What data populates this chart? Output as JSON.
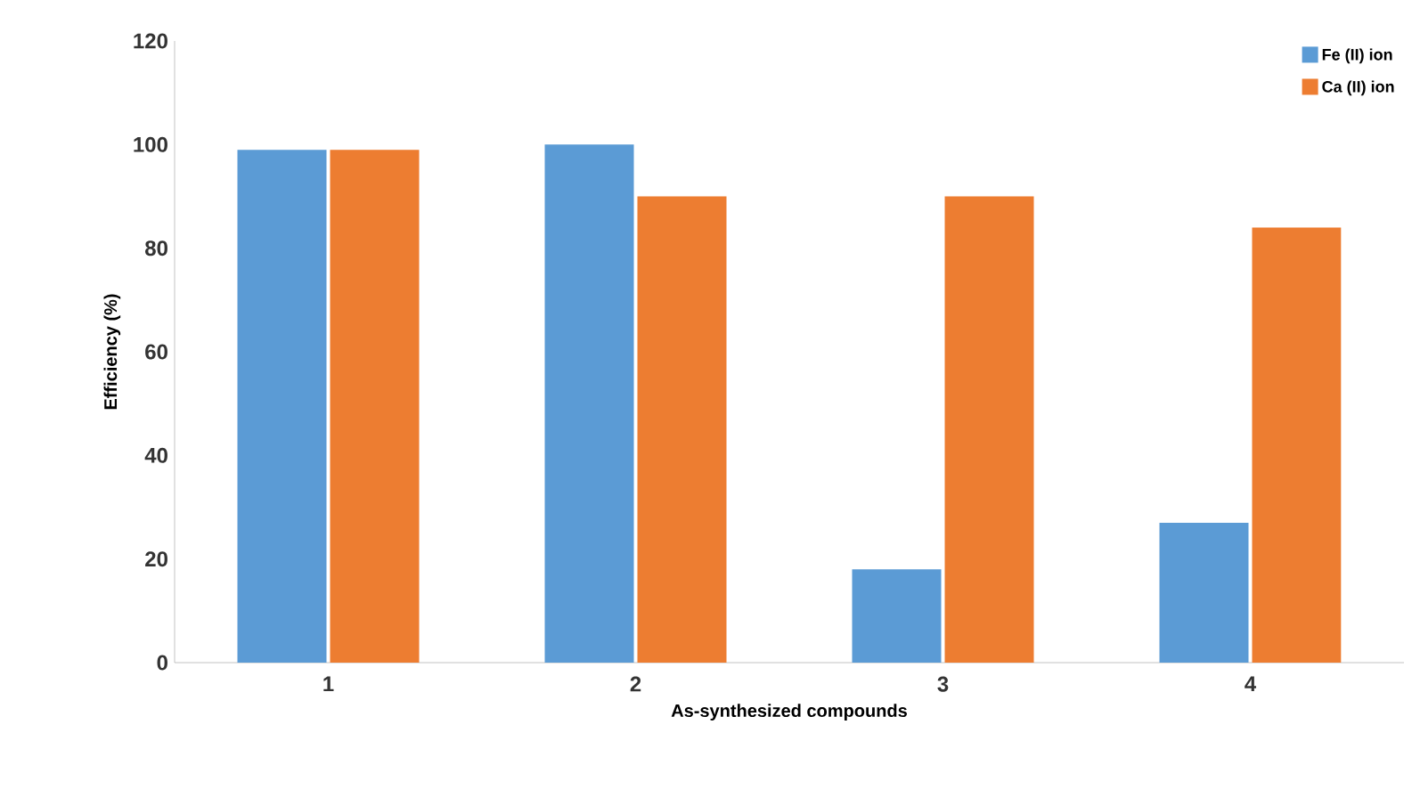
{
  "chart_data": {
    "type": "bar",
    "xlabel": "As-synthesized compounds",
    "ylabel": "Efficiency (%)",
    "categories": [
      "1",
      "2",
      "3",
      "4"
    ],
    "series": [
      {
        "name": "Fe (II) ion",
        "color": "#5b9bd5",
        "values": [
          99,
          100,
          18,
          27
        ]
      },
      {
        "name": "Ca (II) ion",
        "color": "#ed7d31",
        "values": [
          99,
          90,
          90,
          84
        ]
      }
    ],
    "ylim": [
      0,
      120
    ],
    "yticks": [
      0,
      20,
      40,
      60,
      80,
      100,
      120
    ],
    "grid": false,
    "legend": "top right"
  }
}
